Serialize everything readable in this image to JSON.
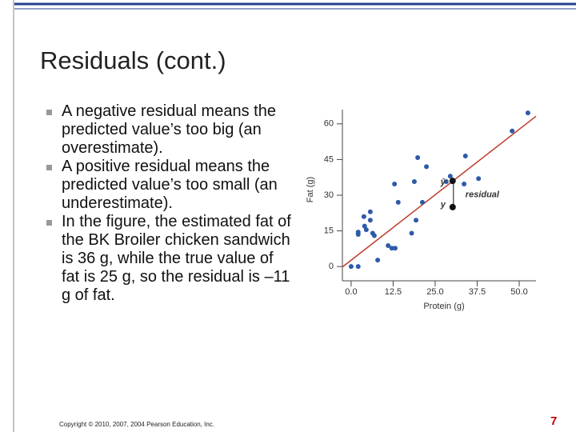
{
  "slide": {
    "title": "Residuals (cont.)",
    "bullets": [
      "A negative residual means the predicted value’s too big (an overestimate).",
      "A positive residual means the predicted value’s too small (an underestimate).",
      "In the figure, the estimated fat of the BK Broiler chicken sandwich is 36 g, while the true value of fat is 25 g, so the residual is –11 g of fat."
    ],
    "copyright": "Copyright © 2010, 2007, 2004 Pearson Education, Inc.",
    "page": "7"
  },
  "chart_data": {
    "type": "scatter",
    "xlabel": "Protein (g)",
    "ylabel": "Fat (g)",
    "xlim": [
      -2.6,
      55
    ],
    "ylim": [
      -6,
      66
    ],
    "xticks": [
      {
        "value": 0,
        "label": "0.0"
      },
      12.5,
      {
        "value": 25,
        "label": "25.0"
      },
      37.5,
      {
        "value": 50,
        "label": "50.0"
      }
    ],
    "yticks": [
      0,
      15,
      30,
      45,
      60
    ],
    "series": [
      {
        "color": "#2f5aa8",
        "x": [
          0,
          2.1,
          2.1,
          2.1,
          3.8,
          4,
          4.5,
          5.7,
          5.7,
          6.4,
          6.9,
          7.9,
          11,
          12.1,
          13.1,
          12.9,
          14,
          18,
          19.8,
          19.3,
          18.8,
          21.2,
          22.4,
          28.3,
          29.5,
          33.6,
          34,
          37.9,
          47.9,
          52.6
        ],
        "y": [
          0,
          0,
          14.5,
          13.5,
          21,
          17,
          15.5,
          23,
          19.5,
          14,
          13,
          2.7,
          8.8,
          7.7,
          7.7,
          34.7,
          27,
          14,
          45.8,
          19.5,
          35.7,
          27,
          42,
          35.7,
          38,
          34.7,
          46.5,
          37,
          57,
          64.6
        ]
      },
      {
        "color": "#111111",
        "x": [
          30.2,
          30.2
        ],
        "y": [
          36,
          25
        ]
      }
    ],
    "fit_line": {
      "color": "#c0392b",
      "x": [
        -2.6,
        55
      ],
      "y": [
        -0.2,
        63.2
      ]
    },
    "annotations": [
      "ŷ",
      "y",
      "residual"
    ]
  }
}
